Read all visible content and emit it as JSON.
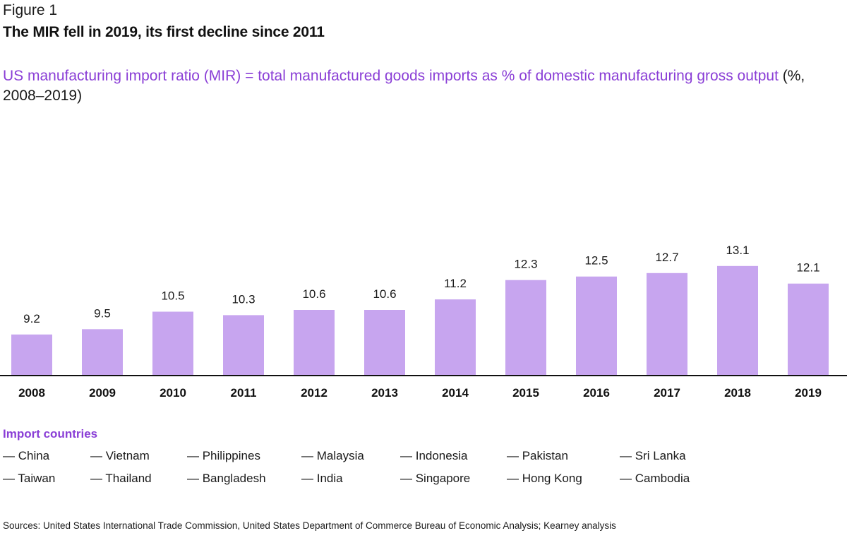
{
  "figure_label": "Figure 1",
  "headline": "The MIR fell in 2019, its first decline since 2011",
  "subtitle": {
    "purple_text": "US manufacturing import ratio (MIR) = total manufactured goods imports as % of domestic manufacturing gross output",
    "dark_text": " (%, 2008–2019)"
  },
  "chart_data": {
    "type": "bar",
    "categories": [
      "2008",
      "2009",
      "2010",
      "2011",
      "2012",
      "2013",
      "2014",
      "2015",
      "2016",
      "2017",
      "2018",
      "2019"
    ],
    "values": [
      9.2,
      9.5,
      10.5,
      10.3,
      10.6,
      10.6,
      11.2,
      12.3,
      12.5,
      12.7,
      13.1,
      12.1
    ],
    "value_labels": [
      "9.2",
      "9.5",
      "10.5",
      "10.3",
      "10.6",
      "10.6",
      "11.2",
      "12.3",
      "12.5",
      "12.7",
      "13.1",
      "12.1"
    ],
    "bar_color": "#c7a5ef",
    "axis_color": "#111111",
    "grid": false,
    "legend": "none"
  },
  "legend": {
    "title": "Import countries",
    "rows": [
      [
        "— China",
        "— Vietnam",
        "— Philippines",
        "— Malaysia",
        "— Indonesia",
        "— Pakistan",
        "— Sri Lanka"
      ],
      [
        "— Taiwan",
        "— Thailand",
        "— Bangladesh",
        "— India",
        "— Singapore",
        "— Hong Kong",
        "— Cambodia"
      ]
    ]
  },
  "sources": "Sources: United States International Trade Commission, United States Department of Commerce Bureau of Economic Analysis; Kearney analysis",
  "colors": {
    "accent": "#8a3ed6",
    "bar": "#c7a5ef",
    "text": "#1a1a1a"
  }
}
